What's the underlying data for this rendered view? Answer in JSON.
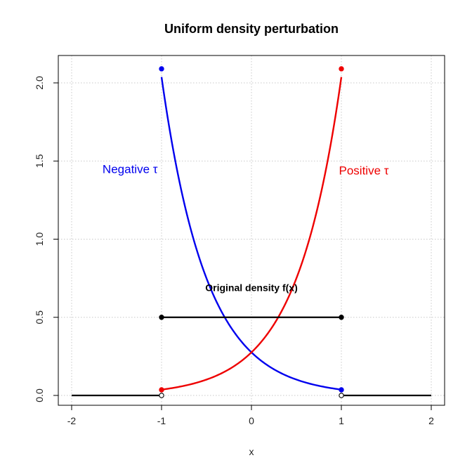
{
  "chart_data": {
    "type": "line",
    "title": "Uniform density perturbation",
    "xlabel": "x",
    "ylabel": "",
    "xlim": [
      -2,
      2
    ],
    "ylim": [
      0,
      2.1
    ],
    "x_ticks": [
      "-2",
      "-1",
      "0",
      "1",
      "2"
    ],
    "y_ticks": [
      "0.0",
      "0.5",
      "1.0",
      "1.5",
      "2.0"
    ],
    "grid": true,
    "annotations": {
      "negative": {
        "text": "Negative τ",
        "color": "#0000ee",
        "x": -1.35,
        "y": 1.45
      },
      "positive": {
        "text": "Positive τ",
        "color": "#ee0000",
        "x": 1.25,
        "y": 1.44
      },
      "original": {
        "text": "Original density f(x)",
        "color": "#000000",
        "x": 0,
        "y": 0.69
      }
    },
    "series": [
      {
        "color": "#0000ee",
        "function": "exp_decreasing",
        "rate": 2.0,
        "x_range": [
          -1,
          1
        ],
        "y_at_ends": [
          2.09,
          0.036
        ]
      },
      {
        "color": "#ee0000",
        "function": "exp_increasing",
        "rate": 2.0,
        "x_range": [
          -1,
          1
        ],
        "y_at_ends": [
          0.036,
          2.09
        ]
      },
      {
        "color": "#000000",
        "segments": [
          {
            "x": [
              -2,
              -1
            ],
            "y": [
              0,
              0
            ]
          },
          {
            "x": [
              -1,
              1
            ],
            "y": [
              0.5,
              0.5
            ]
          },
          {
            "x": [
              1,
              2
            ],
            "y": [
              0,
              0
            ]
          }
        ]
      }
    ],
    "points": {
      "filled": [
        {
          "x": -1,
          "y": 2.09,
          "color": "#0000ee"
        },
        {
          "x": 1,
          "y": 0.036,
          "color": "#0000ee"
        },
        {
          "x": -1,
          "y": 0.036,
          "color": "#ee0000"
        },
        {
          "x": 1,
          "y": 2.09,
          "color": "#ee0000"
        },
        {
          "x": -1,
          "y": 0.5,
          "color": "#000000"
        },
        {
          "x": 1,
          "y": 0.5,
          "color": "#000000"
        }
      ],
      "open": [
        {
          "x": -1,
          "y": 0,
          "color": "#000000"
        },
        {
          "x": 1,
          "y": 0,
          "color": "#000000"
        }
      ]
    }
  }
}
